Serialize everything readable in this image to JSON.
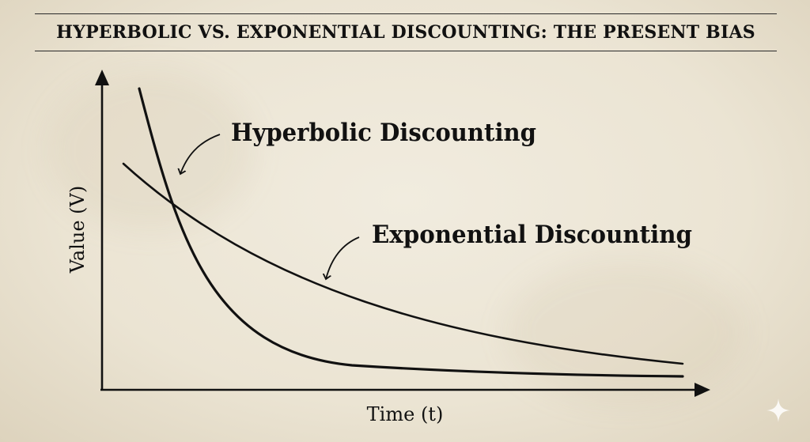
{
  "title": "HYPERBOLIC VS. EXPONENTIAL DISCOUNTING: THE PRESENT BIAS",
  "chart_data": {
    "type": "line",
    "xlabel": "Time (t)",
    "ylabel": "Value (V)",
    "series": [
      {
        "name": "Hyperbolic Discounting",
        "color": "#111111"
      },
      {
        "name": "Exponential Discounting",
        "color": "#111111"
      }
    ],
    "grid": false
  },
  "icons": {
    "corner": "sparkle-icon"
  }
}
